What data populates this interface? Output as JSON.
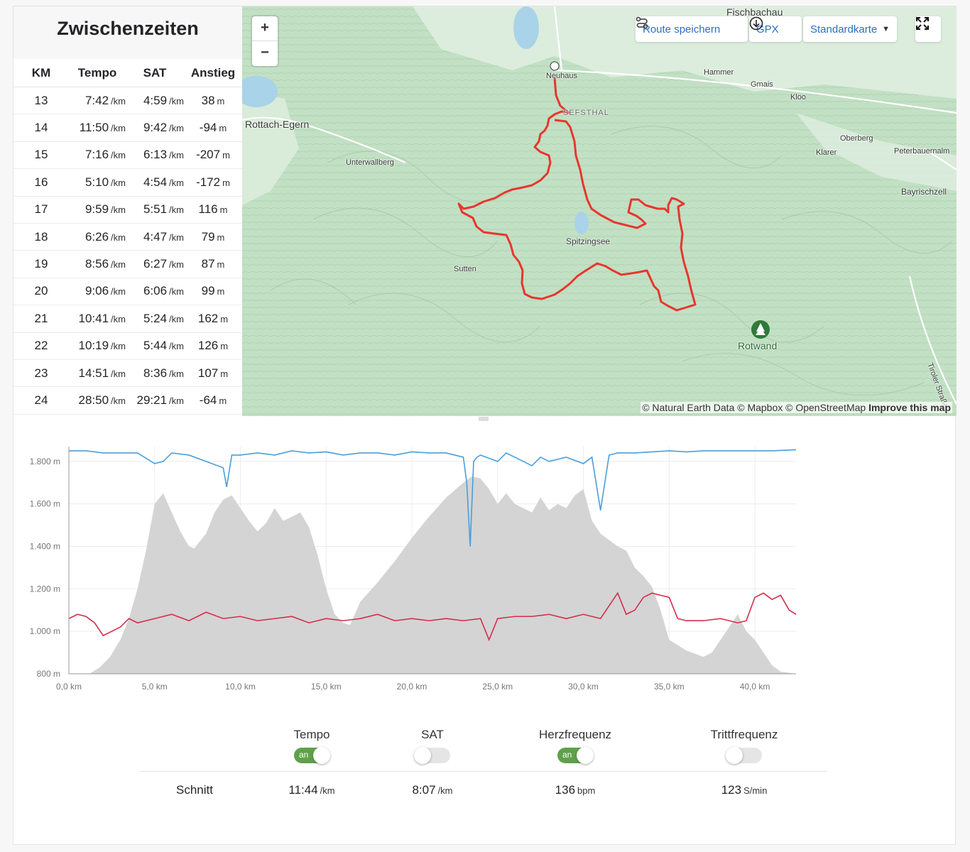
{
  "splits": {
    "title": "Zwischenzeiten",
    "headers": {
      "km": "KM",
      "pace": "Tempo",
      "gap": "SAT",
      "elev": "Anstieg"
    },
    "pace_unit": "/km",
    "elev_unit": "m",
    "rows": [
      {
        "km": "13",
        "pace": "7:42",
        "gap": "4:59",
        "elev": "38"
      },
      {
        "km": "14",
        "pace": "11:50",
        "gap": "9:42",
        "elev": "-94"
      },
      {
        "km": "15",
        "pace": "7:16",
        "gap": "6:13",
        "elev": "-207"
      },
      {
        "km": "16",
        "pace": "5:10",
        "gap": "4:54",
        "elev": "-172"
      },
      {
        "km": "17",
        "pace": "9:59",
        "gap": "5:51",
        "elev": "116"
      },
      {
        "km": "18",
        "pace": "6:26",
        "gap": "4:47",
        "elev": "79"
      },
      {
        "km": "19",
        "pace": "8:56",
        "gap": "6:27",
        "elev": "87"
      },
      {
        "km": "20",
        "pace": "9:06",
        "gap": "6:06",
        "elev": "99"
      },
      {
        "km": "21",
        "pace": "10:41",
        "gap": "5:24",
        "elev": "162"
      },
      {
        "km": "22",
        "pace": "10:19",
        "gap": "5:44",
        "elev": "126"
      },
      {
        "km": "23",
        "pace": "14:51",
        "gap": "8:36",
        "elev": "107"
      },
      {
        "km": "24",
        "pace": "28:50",
        "gap": "29:21",
        "elev": "-64"
      }
    ]
  },
  "map": {
    "zoom_in": "+",
    "zoom_out": "−",
    "save_route": "Route speichern",
    "gpx": "GPX",
    "map_style": "Standardkarte",
    "attribution": "© Natural Earth Data © Mapbox © OpenStreetMap",
    "improve": "Improve this map",
    "route_color": "#e8362d",
    "labels": {
      "fischbachau": "Fischbachau",
      "neuhaus": "Neuhaus",
      "hammer": "Hammer",
      "gmais": "Gmais",
      "kloo": "Kloo",
      "rottach": "Rottach-Egern",
      "josefsthal": "SEFSTHAL",
      "unterwallberg": "Unterwallberg",
      "oberberg": "Oberberg",
      "klarer": "Klarer",
      "peterbauernalm": "Peterbauernalm",
      "bayrischzell": "Bayrischzell",
      "spitzingsee": "Spitzingsee",
      "sutten": "Sutten",
      "rotwand": "Rotwand",
      "tiroler": "Tiroler Straße"
    }
  },
  "chart_data": {
    "type": "line",
    "xlabel": "",
    "ylabel": "",
    "x_ticks": [
      "0,0 km",
      "5,0 km",
      "10,0 km",
      "15,0 km",
      "20,0 km",
      "25,0 km",
      "30,0 km",
      "35,0 km",
      "40,0 km"
    ],
    "y_ticks": [
      "800 m",
      "1.000 m",
      "1.200 m",
      "1.400 m",
      "1.600 m",
      "1.800 m"
    ],
    "xlim": [
      0,
      42.4
    ],
    "ylim": [
      800,
      1870
    ],
    "series": [
      {
        "kind": "elevation-area",
        "color": "#d4d4d4",
        "x": [
          0,
          1.2,
          1.8,
          2.4,
          3.0,
          3.5,
          4.0,
          4.5,
          5.0,
          5.5,
          6.0,
          6.5,
          7.0,
          7.3,
          8.0,
          8.5,
          9.0,
          9.5,
          10.0,
          10.5,
          11.0,
          11.5,
          12.0,
          12.5,
          13.0,
          13.5,
          14.0,
          14.5,
          15.0,
          15.5,
          16.0,
          16.4,
          17.0,
          18.0,
          19.0,
          20.0,
          21.0,
          22.0,
          23.0,
          23.5,
          24.0,
          24.5,
          25.0,
          25.5,
          26.0,
          26.5,
          27.0,
          27.5,
          28.0,
          28.5,
          29.0,
          29.5,
          30.0,
          30.5,
          31.0,
          32.0,
          32.5,
          33.0,
          33.5,
          34.0,
          34.5,
          35.0,
          36.0,
          37.0,
          37.5,
          38.0,
          38.5,
          39.0,
          39.5,
          40.0,
          40.5,
          41.0,
          41.5,
          42.4
        ],
        "y": [
          800,
          800,
          830,
          880,
          960,
          1060,
          1200,
          1380,
          1600,
          1650,
          1560,
          1470,
          1400,
          1390,
          1460,
          1560,
          1620,
          1640,
          1580,
          1520,
          1470,
          1510,
          1580,
          1520,
          1540,
          1560,
          1490,
          1360,
          1200,
          1080,
          1040,
          1030,
          1140,
          1230,
          1330,
          1440,
          1540,
          1630,
          1700,
          1730,
          1720,
          1670,
          1600,
          1650,
          1600,
          1580,
          1560,
          1630,
          1570,
          1600,
          1580,
          1640,
          1670,
          1520,
          1460,
          1400,
          1380,
          1300,
          1260,
          1210,
          1100,
          960,
          910,
          880,
          900,
          960,
          1020,
          1080,
          1000,
          960,
          900,
          840,
          810,
          800
        ]
      },
      {
        "name": "Tempo",
        "color": "#4a9fd9",
        "x": [
          0,
          1,
          2,
          3,
          4,
          5,
          5.5,
          6,
          7,
          8,
          9,
          9.2,
          9.5,
          10,
          11,
          12,
          13,
          14,
          15,
          16,
          17,
          18,
          19,
          20,
          21,
          22,
          22.5,
          23,
          23.2,
          23.4,
          23.6,
          23.8,
          24,
          25,
          25.5,
          26,
          27,
          27.5,
          28,
          29,
          30,
          30.5,
          31,
          31.5,
          32,
          33,
          34,
          35,
          36,
          37,
          38,
          39,
          40,
          41,
          42.4
        ],
        "y": [
          1850,
          1850,
          1840,
          1840,
          1840,
          1790,
          1800,
          1840,
          1830,
          1800,
          1770,
          1680,
          1830,
          1830,
          1840,
          1830,
          1850,
          1840,
          1845,
          1830,
          1840,
          1840,
          1830,
          1845,
          1840,
          1840,
          1830,
          1820,
          1700,
          1400,
          1800,
          1820,
          1830,
          1800,
          1840,
          1820,
          1780,
          1820,
          1800,
          1820,
          1790,
          1820,
          1570,
          1830,
          1840,
          1840,
          1845,
          1850,
          1845,
          1850,
          1850,
          1850,
          1850,
          1850,
          1855
        ]
      },
      {
        "name": "Herzfrequenz",
        "color": "#d42d4a",
        "x": [
          0,
          0.5,
          1,
          1.5,
          2,
          2.5,
          3,
          3.5,
          4,
          5,
          6,
          7,
          8,
          9,
          10,
          11,
          12,
          13,
          14,
          15,
          16,
          17,
          18,
          19,
          20,
          21,
          22,
          23,
          24,
          24.5,
          25,
          26,
          27,
          28,
          29,
          30,
          31,
          32,
          32.5,
          33,
          33.5,
          34,
          34.5,
          35,
          35.5,
          36,
          37,
          38,
          39,
          39.5,
          40,
          40.5,
          41,
          41.5,
          42,
          42.4
        ],
        "y": [
          1060,
          1080,
          1070,
          1040,
          980,
          1000,
          1020,
          1060,
          1040,
          1060,
          1080,
          1050,
          1090,
          1060,
          1070,
          1050,
          1060,
          1070,
          1040,
          1060,
          1050,
          1060,
          1080,
          1050,
          1060,
          1050,
          1060,
          1050,
          1060,
          960,
          1060,
          1070,
          1070,
          1080,
          1060,
          1080,
          1060,
          1180,
          1080,
          1100,
          1160,
          1180,
          1170,
          1160,
          1060,
          1050,
          1050,
          1060,
          1040,
          1050,
          1160,
          1180,
          1150,
          1170,
          1100,
          1080
        ]
      }
    ]
  },
  "toggles": [
    {
      "label": "Tempo",
      "state": "an",
      "on": true
    },
    {
      "label": "SAT",
      "state": "",
      "on": false
    },
    {
      "label": "Herzfrequenz",
      "state": "an",
      "on": true
    },
    {
      "label": "Trittfrequenz",
      "state": "",
      "on": false
    }
  ],
  "averages": {
    "label": "Schnitt",
    "pace": "11:44",
    "pace_unit": "/km",
    "gap": "8:07",
    "gap_unit": "/km",
    "hr": "136",
    "hr_unit": "bpm",
    "cadence": "123",
    "cadence_unit": "S/min"
  }
}
